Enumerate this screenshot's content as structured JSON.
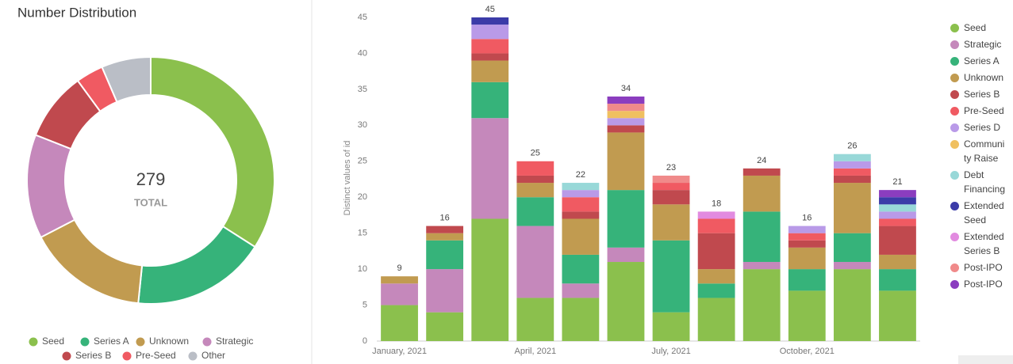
{
  "chart_data": [
    {
      "type": "donut",
      "title": "Number Distribution",
      "total": 279,
      "total_label": "TOTAL",
      "categories": [
        "Seed",
        "Series A",
        "Unknown",
        "Strategic",
        "Series B",
        "Pre-Seed",
        "Other"
      ],
      "values": [
        95,
        49,
        44,
        38,
        25,
        10,
        18
      ],
      "colors": [
        "#8bc04d",
        "#36b37a",
        "#c19b50",
        "#c588bb",
        "#c0494e",
        "#f05a62",
        "#babec6"
      ]
    },
    {
      "type": "bar",
      "stacked": true,
      "grid": false,
      "ylabel": "Distinct values of id",
      "categories": [
        "January, 2021",
        null,
        null,
        "April, 2021",
        null,
        null,
        "July, 2021",
        null,
        null,
        "October, 2021",
        null,
        null
      ],
      "ylim": [
        0,
        45
      ],
      "yticks": [
        0,
        5,
        10,
        15,
        20,
        25,
        30,
        35,
        40,
        45
      ],
      "totals": [
        9,
        16,
        45,
        25,
        22,
        34,
        23,
        18,
        24,
        16,
        26,
        21
      ],
      "series": [
        {
          "name": "Seed",
          "color": "#8bc04d",
          "values": [
            5,
            4,
            17,
            6,
            6,
            11,
            4,
            6,
            10,
            7,
            10,
            7
          ]
        },
        {
          "name": "Strategic",
          "color": "#c588bb",
          "values": [
            3,
            6,
            14,
            10,
            2,
            2,
            0,
            0,
            1,
            0,
            1,
            0
          ]
        },
        {
          "name": "Series A",
          "color": "#36b37a",
          "values": [
            0,
            4,
            5,
            4,
            4,
            8,
            10,
            2,
            7,
            3,
            4,
            3
          ]
        },
        {
          "name": "Unknown",
          "color": "#c19b50",
          "values": [
            1,
            1,
            3,
            2,
            5,
            8,
            5,
            2,
            5,
            3,
            7,
            2
          ]
        },
        {
          "name": "Series B",
          "color": "#c0494e",
          "values": [
            0,
            1,
            1,
            1,
            1,
            1,
            2,
            5,
            1,
            1,
            1,
            4
          ]
        },
        {
          "name": "Pre-Seed",
          "color": "#f05a62",
          "values": [
            0,
            0,
            2,
            2,
            2,
            0,
            1,
            2,
            0,
            1,
            1,
            1
          ]
        },
        {
          "name": "Series D",
          "color": "#b99ae8",
          "values": [
            0,
            0,
            2,
            0,
            1,
            1,
            0,
            0,
            0,
            1,
            1,
            1
          ]
        },
        {
          "name": "Community Raise",
          "color": "#f0c060",
          "values": [
            0,
            0,
            0,
            0,
            0,
            1,
            0,
            0,
            0,
            0,
            0,
            0
          ]
        },
        {
          "name": "Debt Financing",
          "color": "#98d8d8",
          "values": [
            0,
            0,
            0,
            0,
            1,
            0,
            0,
            0,
            0,
            0,
            1,
            1
          ]
        },
        {
          "name": "Extended Seed",
          "color": "#3b3ba8",
          "values": [
            0,
            0,
            1,
            0,
            0,
            0,
            0,
            0,
            0,
            0,
            0,
            1
          ]
        },
        {
          "name": "Extended Series B",
          "color": "#e28be0",
          "values": [
            0,
            0,
            0,
            0,
            0,
            0,
            0,
            1,
            0,
            0,
            0,
            0
          ]
        },
        {
          "name": "Post-IPO",
          "color": "#f08a8a",
          "values": [
            0,
            0,
            0,
            0,
            0,
            1,
            1,
            0,
            0,
            0,
            0,
            0
          ]
        },
        {
          "name": "Post-IPO",
          "color": "#8b3dbf",
          "values": [
            0,
            0,
            0,
            0,
            0,
            1,
            0,
            0,
            0,
            0,
            0,
            1
          ]
        }
      ]
    }
  ]
}
